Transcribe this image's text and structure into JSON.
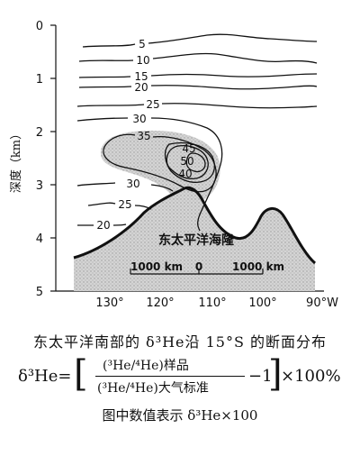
{
  "chart_data": {
    "type": "contour",
    "y_axis": {
      "label": "深度（km）",
      "ticks": [
        "0",
        "1",
        "2",
        "3",
        "4",
        "5"
      ],
      "ylim": [
        0,
        5
      ],
      "inverted": true
    },
    "x_axis": {
      "ticks": [
        "130°",
        "120°",
        "110°",
        "100°",
        "90°W"
      ],
      "values": [
        130,
        120,
        110,
        100,
        90
      ]
    },
    "contour_labels": [
      "5",
      "10",
      "15",
      "20",
      "25",
      "30",
      "35",
      "45",
      "50",
      "40",
      "30",
      "25",
      "20"
    ],
    "ridge_label": "东太平洋海隆",
    "scale_bar": {
      "left": "1000 km",
      "center": "0",
      "right": "1000 km"
    },
    "caption": {
      "line1": "东太平洋南部的 δ³He沿 15°S 的断面分布",
      "formula_lhs": "δ³He=",
      "formula_numerator": "(³He/⁴He)样品",
      "formula_denominator": "(³He/⁴He)大气标准",
      "formula_minus": "−1",
      "formula_rhs": "×100%",
      "line3": "图中数值表示 δ³He×100"
    },
    "colors": {
      "ink": "#111111",
      "shade": "#c9c9c9"
    }
  }
}
